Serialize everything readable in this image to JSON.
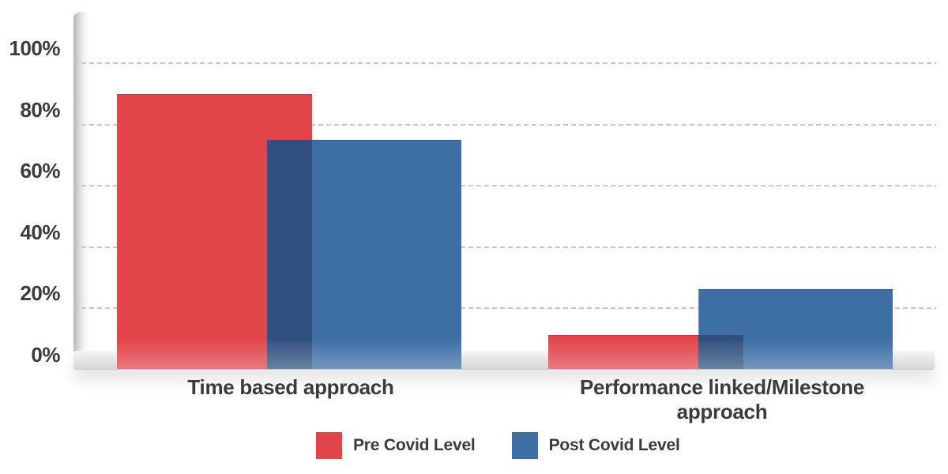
{
  "chart_data": {
    "type": "bar",
    "title": "",
    "xlabel": "",
    "ylabel": "",
    "unit": "%",
    "categories": [
      "Time based approach",
      "Performance linked/Milestone approach"
    ],
    "series": [
      {
        "name": "Pre Covid Level",
        "color": "#e1454a",
        "values": [
          90,
          11
        ]
      },
      {
        "name": "Post Covid Level",
        "color": "#3d6fa5",
        "values": [
          75,
          26
        ]
      }
    ],
    "overlap_color": "#30517f",
    "ytick_labels": [
      "100%",
      "80%",
      "60%",
      "40%",
      "20%",
      "0%"
    ],
    "ylim": [
      0,
      100
    ],
    "grid": "dashed-horizontal",
    "legend_position": "bottom"
  },
  "colors": {
    "text": "#3b3b3b",
    "gridline": "#c6c6c6",
    "axis_strip": "#b5b5b5",
    "floor": "#c6c6c6"
  }
}
